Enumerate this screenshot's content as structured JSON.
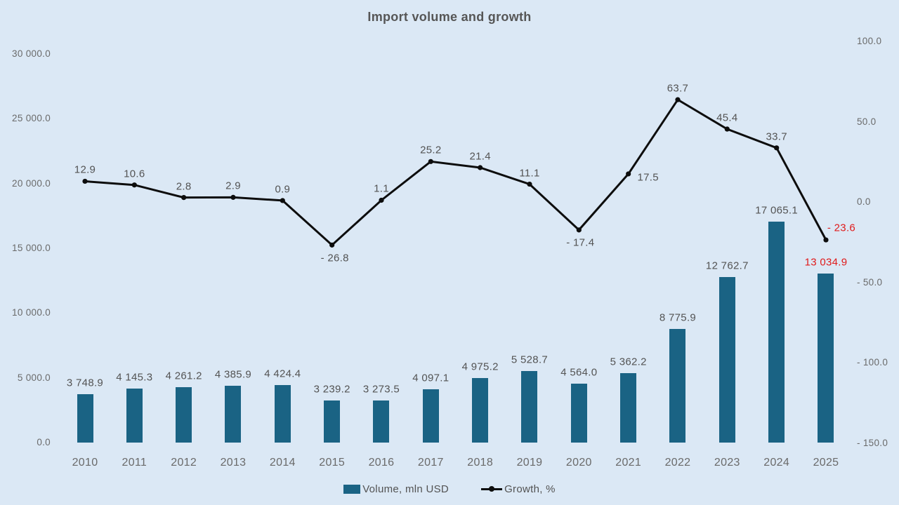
{
  "title": "Import volume and growth",
  "legend": {
    "volume": "Volume, mln USD",
    "growth": "Growth, %"
  },
  "colors": {
    "background": "#dbe8f5",
    "bar": "#1a6384",
    "line": "#0d0d0d",
    "axis_text": "#6a6a6a",
    "label_text": "#535353",
    "title_text": "#565656",
    "highlight": "#e01a1a"
  },
  "chart_data": {
    "type": "bar+line combo",
    "categories": [
      "2010",
      "2011",
      "2012",
      "2013",
      "2014",
      "2015",
      "2016",
      "2017",
      "2018",
      "2019",
      "2020",
      "2021",
      "2022",
      "2023",
      "2024",
      "2025"
    ],
    "series": [
      {
        "name": "Volume, mln USD",
        "type": "bar",
        "axis": "left",
        "values": [
          3748.9,
          4145.3,
          4261.2,
          4385.9,
          4424.4,
          3239.2,
          3273.5,
          4097.1,
          4975.2,
          5528.7,
          4564.0,
          5362.2,
          8775.9,
          12762.7,
          17065.1,
          13034.9
        ],
        "labels": [
          "3 748.9",
          "4 145.3",
          "4 261.2",
          "4 385.9",
          "4 424.4",
          "3 239.2",
          "3 273.5",
          "4 097.1",
          "4 975.2",
          "5 528.7",
          "4 564.0",
          "5 362.2",
          "8 775.9",
          "12 762.7",
          "17 065.1",
          "13 034.9"
        ]
      },
      {
        "name": "Growth, %",
        "type": "line",
        "axis": "right",
        "values": [
          12.9,
          10.6,
          2.8,
          2.9,
          0.9,
          -26.8,
          1.1,
          25.2,
          21.4,
          11.1,
          -17.4,
          17.5,
          63.7,
          45.4,
          33.7,
          -23.6
        ],
        "labels": [
          "12.9",
          "10.6",
          "2.8",
          "2.9",
          "0.9",
          "- 26.8",
          "1.1",
          "25.2",
          "21.4",
          "11.1",
          "- 17.4",
          "17.5",
          "63.7",
          "45.4",
          "33.7",
          "- 23.6"
        ]
      }
    ],
    "highlight_index": 15,
    "left_axis": {
      "range": [
        0,
        30000
      ],
      "ticks": [
        {
          "value": 30000,
          "label": "30 000.0"
        },
        {
          "value": 25000,
          "label": "25 000.0"
        },
        {
          "value": 20000,
          "label": "20 000.0"
        },
        {
          "value": 15000,
          "label": "15 000.0"
        },
        {
          "value": 10000,
          "label": "10 000.0"
        },
        {
          "value": 5000,
          "label": "5 000.0"
        },
        {
          "value": 0,
          "label": "0.0"
        }
      ]
    },
    "right_axis": {
      "range": [
        -150,
        100
      ],
      "ticks": [
        {
          "value": 100,
          "label": "100.0"
        },
        {
          "value": 50,
          "label": "50.0"
        },
        {
          "value": 0,
          "label": "0.0"
        },
        {
          "value": -50,
          "label": "- 50.0"
        },
        {
          "value": -100,
          "label": "- 100.0"
        },
        {
          "value": -150,
          "label": "- 150.0"
        }
      ]
    },
    "grid": "off",
    "legend_position": "bottom-center"
  }
}
